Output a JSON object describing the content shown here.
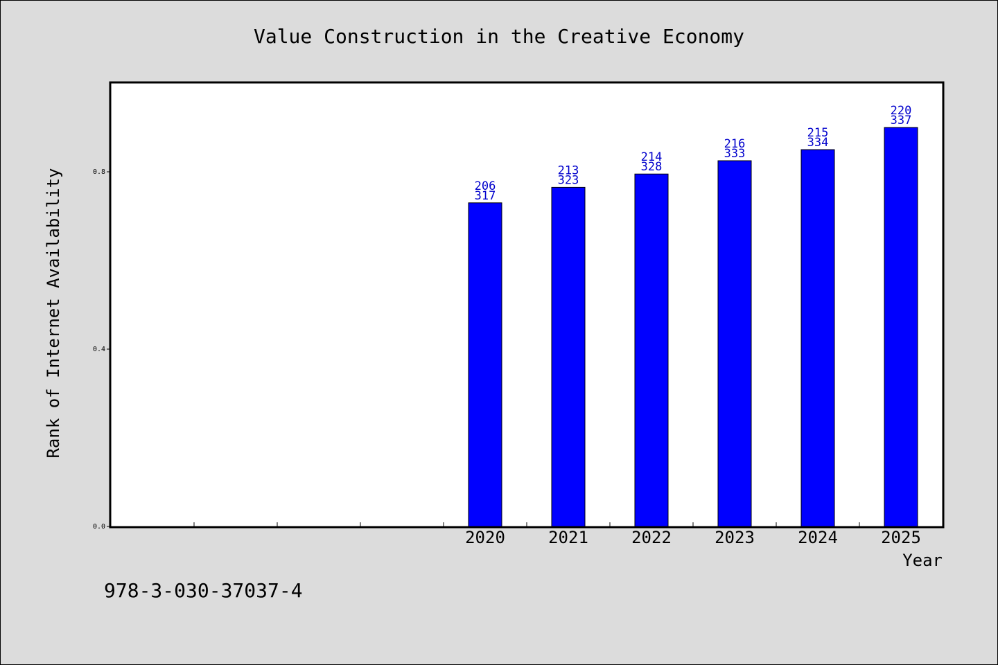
{
  "chart_data": {
    "type": "bar",
    "title": "Value Construction in the Creative Economy",
    "xlabel": "Year",
    "ylabel": "Rank of Internet Availability",
    "categories": [
      "2020",
      "2021",
      "2022",
      "2023",
      "2024",
      "2025"
    ],
    "values": [
      0.73,
      0.765,
      0.795,
      0.825,
      0.85,
      0.9
    ],
    "data_labels_top": [
      "206",
      "213",
      "214",
      "216",
      "215",
      "220"
    ],
    "data_labels_bottom": [
      "317",
      "323",
      "328",
      "333",
      "334",
      "337"
    ],
    "y_ticks": [
      "0.0",
      "0.4",
      "0.8"
    ],
    "ylim": [
      0,
      1.0
    ],
    "empty_slots_before": 4,
    "grid": false,
    "bar_color": "#0000ff",
    "label_color": "#0000cc",
    "background": "#dcdcdc",
    "plot_background": "#ffffff"
  },
  "footer": {
    "isbn": "978-3-030-37037-4"
  }
}
